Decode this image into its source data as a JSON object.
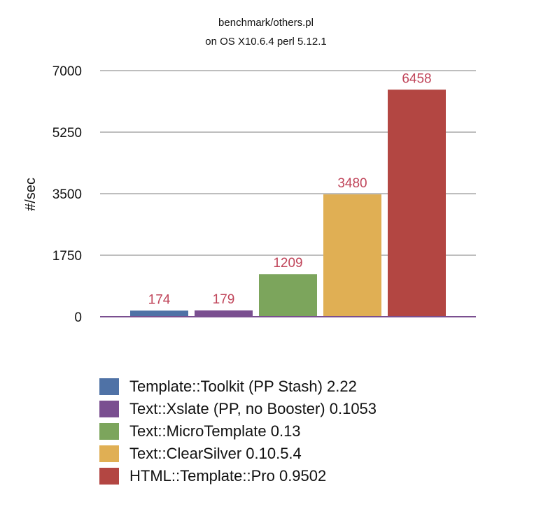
{
  "chart_data": {
    "type": "bar",
    "title": [
      "benchmark/others.pl",
      "on OS X10.6.4 perl 5.12.1"
    ],
    "ylabel": "#/sec",
    "xlabel": "",
    "ylim": [
      0,
      7000
    ],
    "yticks": [
      0,
      1750,
      3500,
      5250,
      7000
    ],
    "grid": true,
    "legend_position": "bottom",
    "series": [
      {
        "name": "Template::Toolkit (PP Stash) 2.22",
        "values": [
          174
        ],
        "color": "#4f72a6"
      },
      {
        "name": "Text::Xslate (PP, no Booster) 0.1053",
        "values": [
          179
        ],
        "color": "#7a4f90"
      },
      {
        "name": "Text::MicroTemplate 0.13",
        "values": [
          1209
        ],
        "color": "#7ca55c"
      },
      {
        "name": "Text::ClearSilver 0.10.5.4",
        "values": [
          3480
        ],
        "color": "#e0af54"
      },
      {
        "name": "HTML::Template::Pro 0.9502",
        "values": [
          6458
        ],
        "color": "#b34642"
      }
    ],
    "data_label_color": "#c0455a",
    "axis_color": "#7a4f90"
  }
}
